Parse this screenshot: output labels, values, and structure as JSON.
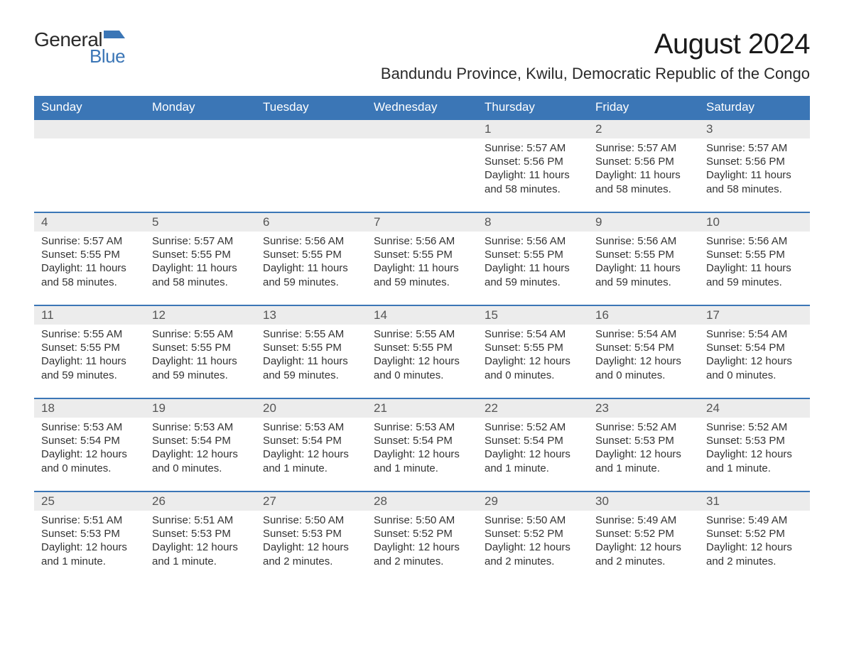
{
  "logo": {
    "part1": "General",
    "part2": "Blue",
    "flag_color": "#3b76b6"
  },
  "title": "August 2024",
  "location": "Bandundu Province, Kwilu, Democratic Republic of the Congo",
  "header_bg": "#3b76b6",
  "header_fg": "#ffffff",
  "daynum_bg": "#ececec",
  "border_color": "#3b76b6",
  "text_color": "#333333",
  "font_family": "Arial, Helvetica, sans-serif",
  "columns": [
    "Sunday",
    "Monday",
    "Tuesday",
    "Wednesday",
    "Thursday",
    "Friday",
    "Saturday"
  ],
  "weeks": [
    [
      null,
      null,
      null,
      null,
      {
        "day": "1",
        "sunrise": "5:57 AM",
        "sunset": "5:56 PM",
        "daylight": "11 hours and 58 minutes."
      },
      {
        "day": "2",
        "sunrise": "5:57 AM",
        "sunset": "5:56 PM",
        "daylight": "11 hours and 58 minutes."
      },
      {
        "day": "3",
        "sunrise": "5:57 AM",
        "sunset": "5:56 PM",
        "daylight": "11 hours and 58 minutes."
      }
    ],
    [
      {
        "day": "4",
        "sunrise": "5:57 AM",
        "sunset": "5:55 PM",
        "daylight": "11 hours and 58 minutes."
      },
      {
        "day": "5",
        "sunrise": "5:57 AM",
        "sunset": "5:55 PM",
        "daylight": "11 hours and 58 minutes."
      },
      {
        "day": "6",
        "sunrise": "5:56 AM",
        "sunset": "5:55 PM",
        "daylight": "11 hours and 59 minutes."
      },
      {
        "day": "7",
        "sunrise": "5:56 AM",
        "sunset": "5:55 PM",
        "daylight": "11 hours and 59 minutes."
      },
      {
        "day": "8",
        "sunrise": "5:56 AM",
        "sunset": "5:55 PM",
        "daylight": "11 hours and 59 minutes."
      },
      {
        "day": "9",
        "sunrise": "5:56 AM",
        "sunset": "5:55 PM",
        "daylight": "11 hours and 59 minutes."
      },
      {
        "day": "10",
        "sunrise": "5:56 AM",
        "sunset": "5:55 PM",
        "daylight": "11 hours and 59 minutes."
      }
    ],
    [
      {
        "day": "11",
        "sunrise": "5:55 AM",
        "sunset": "5:55 PM",
        "daylight": "11 hours and 59 minutes."
      },
      {
        "day": "12",
        "sunrise": "5:55 AM",
        "sunset": "5:55 PM",
        "daylight": "11 hours and 59 minutes."
      },
      {
        "day": "13",
        "sunrise": "5:55 AM",
        "sunset": "5:55 PM",
        "daylight": "11 hours and 59 minutes."
      },
      {
        "day": "14",
        "sunrise": "5:55 AM",
        "sunset": "5:55 PM",
        "daylight": "12 hours and 0 minutes."
      },
      {
        "day": "15",
        "sunrise": "5:54 AM",
        "sunset": "5:55 PM",
        "daylight": "12 hours and 0 minutes."
      },
      {
        "day": "16",
        "sunrise": "5:54 AM",
        "sunset": "5:54 PM",
        "daylight": "12 hours and 0 minutes."
      },
      {
        "day": "17",
        "sunrise": "5:54 AM",
        "sunset": "5:54 PM",
        "daylight": "12 hours and 0 minutes."
      }
    ],
    [
      {
        "day": "18",
        "sunrise": "5:53 AM",
        "sunset": "5:54 PM",
        "daylight": "12 hours and 0 minutes."
      },
      {
        "day": "19",
        "sunrise": "5:53 AM",
        "sunset": "5:54 PM",
        "daylight": "12 hours and 0 minutes."
      },
      {
        "day": "20",
        "sunrise": "5:53 AM",
        "sunset": "5:54 PM",
        "daylight": "12 hours and 1 minute."
      },
      {
        "day": "21",
        "sunrise": "5:53 AM",
        "sunset": "5:54 PM",
        "daylight": "12 hours and 1 minute."
      },
      {
        "day": "22",
        "sunrise": "5:52 AM",
        "sunset": "5:54 PM",
        "daylight": "12 hours and 1 minute."
      },
      {
        "day": "23",
        "sunrise": "5:52 AM",
        "sunset": "5:53 PM",
        "daylight": "12 hours and 1 minute."
      },
      {
        "day": "24",
        "sunrise": "5:52 AM",
        "sunset": "5:53 PM",
        "daylight": "12 hours and 1 minute."
      }
    ],
    [
      {
        "day": "25",
        "sunrise": "5:51 AM",
        "sunset": "5:53 PM",
        "daylight": "12 hours and 1 minute."
      },
      {
        "day": "26",
        "sunrise": "5:51 AM",
        "sunset": "5:53 PM",
        "daylight": "12 hours and 1 minute."
      },
      {
        "day": "27",
        "sunrise": "5:50 AM",
        "sunset": "5:53 PM",
        "daylight": "12 hours and 2 minutes."
      },
      {
        "day": "28",
        "sunrise": "5:50 AM",
        "sunset": "5:52 PM",
        "daylight": "12 hours and 2 minutes."
      },
      {
        "day": "29",
        "sunrise": "5:50 AM",
        "sunset": "5:52 PM",
        "daylight": "12 hours and 2 minutes."
      },
      {
        "day": "30",
        "sunrise": "5:49 AM",
        "sunset": "5:52 PM",
        "daylight": "12 hours and 2 minutes."
      },
      {
        "day": "31",
        "sunrise": "5:49 AM",
        "sunset": "5:52 PM",
        "daylight": "12 hours and 2 minutes."
      }
    ]
  ],
  "labels": {
    "sunrise": "Sunrise:",
    "sunset": "Sunset:",
    "daylight": "Daylight:"
  }
}
